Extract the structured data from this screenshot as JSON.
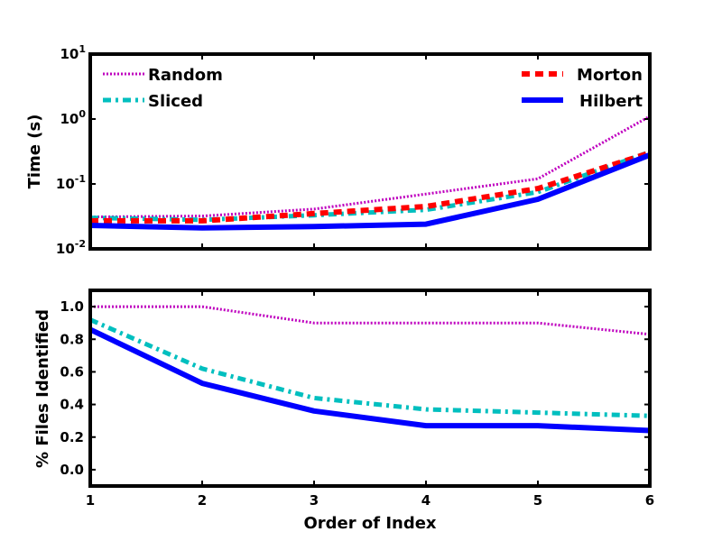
{
  "chart_data": [
    {
      "type": "line",
      "ylabel": "Time (s)",
      "yscale": "log",
      "ylim": [
        0.01,
        10
      ],
      "xlim": [
        1,
        6
      ],
      "y_ticks": [
        {
          "value": 0.01,
          "label": "10",
          "exp": "-2"
        },
        {
          "value": 0.1,
          "label": "10",
          "exp": "-1"
        },
        {
          "value": 1,
          "label": "10",
          "exp": "0"
        },
        {
          "value": 10,
          "label": "10",
          "exp": "1"
        }
      ],
      "legend": "top, split left/right",
      "grid": false,
      "series": [
        {
          "name": "Random",
          "color": "#bf00bf",
          "style": "dotted",
          "x": [
            1,
            2,
            3,
            4,
            5,
            6
          ],
          "values": [
            0.031,
            0.032,
            0.041,
            0.07,
            0.12,
            1.1
          ]
        },
        {
          "name": "Sliced",
          "color": "#00bfbf",
          "style": "dashdot",
          "x": [
            1,
            2,
            3,
            4,
            5,
            6
          ],
          "values": [
            0.03,
            0.028,
            0.033,
            0.04,
            0.075,
            0.31
          ]
        },
        {
          "name": "Morton",
          "color": "#ff0000",
          "style": "dashed",
          "x": [
            1,
            2,
            3,
            4,
            5,
            6
          ],
          "values": [
            0.027,
            0.027,
            0.035,
            0.045,
            0.085,
            0.3
          ]
        },
        {
          "name": "Hilbert",
          "color": "#0000ff",
          "style": "solid",
          "x": [
            1,
            2,
            3,
            4,
            5,
            6
          ],
          "values": [
            0.023,
            0.021,
            0.022,
            0.024,
            0.058,
            0.28
          ]
        }
      ]
    },
    {
      "type": "line",
      "ylabel": "% Files Identified",
      "xlabel": "Order of Index",
      "ylim": [
        -0.1,
        1.1
      ],
      "xlim": [
        1,
        6
      ],
      "x_ticks": [
        "1",
        "2",
        "3",
        "4",
        "5",
        "6"
      ],
      "y_ticks": [
        "0.0",
        "0.2",
        "0.4",
        "0.6",
        "0.8",
        "1.0"
      ],
      "grid": false,
      "series": [
        {
          "name": "Random",
          "color": "#bf00bf",
          "style": "dotted",
          "x": [
            1,
            2,
            3,
            4,
            5,
            6
          ],
          "values": [
            1.0,
            1.0,
            0.9,
            0.9,
            0.9,
            0.83
          ]
        },
        {
          "name": "Sliced",
          "color": "#00bfbf",
          "style": "dashdot",
          "x": [
            1,
            2,
            3,
            4,
            5,
            6
          ],
          "values": [
            0.92,
            0.62,
            0.44,
            0.37,
            0.35,
            0.33
          ]
        },
        {
          "name": "Hilbert",
          "color": "#0000ff",
          "style": "solid",
          "x": [
            1,
            2,
            3,
            4,
            5,
            6
          ],
          "values": [
            0.86,
            0.53,
            0.36,
            0.27,
            0.27,
            0.24
          ]
        }
      ]
    }
  ]
}
